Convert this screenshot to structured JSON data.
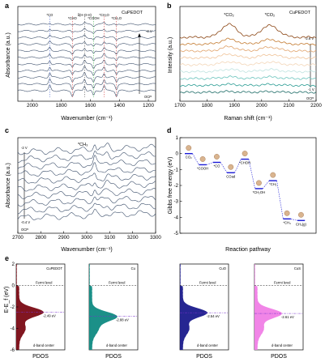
{
  "figure": {
    "panel_a": {
      "letter": "a",
      "tag": "CuPEDOT",
      "ylabel": "Absorbance (a.u.)",
      "xlabel": "Wavenumber (cm⁻¹)",
      "potential_top": "-2 V",
      "potential_bottom": "OCP",
      "peaks": [
        "*CO",
        "*CHO",
        "δ(H-O-H)",
        "*COOH",
        "*CH₂O",
        "*CH₂O"
      ]
    },
    "panel_b": {
      "letter": "b",
      "tag": "CuPEDOT",
      "ylabel": "Intensity (a.u.)",
      "xlabel": "Raman shift (cm⁻¹)",
      "potential_top": "-2.6 V",
      "potential_mid": "-1 V",
      "potential_bottom": "OCP",
      "peaks": [
        "*CO₂",
        "*CO₂"
      ]
    },
    "panel_c": {
      "letter": "c",
      "ylabel": "Absorbance (a.u.)",
      "xlabel": "Wavenumber (cm⁻¹)",
      "potential_top": "-2 V",
      "potential_bottom": "-0.4 V",
      "potential_ocp": "OCP",
      "peak": "*CH₃"
    },
    "panel_d": {
      "letter": "d",
      "ylabel": "Gibbs free energy (eV)",
      "xlabel": "Reaction pathway",
      "species": [
        "CO₂",
        "*COOH",
        "*CO",
        "COad",
        "*CHOH",
        "*CH₂OH",
        "*CH₂",
        "*CH₃",
        "CH₄(g)"
      ]
    },
    "panel_e": {
      "letter": "e",
      "ylabel": "E-E_f (eV)",
      "fermi_label": "Fermi level",
      "dband_label": "d-band center",
      "xlabel": "PDOS"
    }
  },
  "chart_data": [
    {
      "type": "line",
      "panel": "a",
      "xlim": [
        2100,
        1150
      ],
      "xticks": [
        2000,
        1800,
        1600,
        1400,
        1200
      ],
      "series_count": 11,
      "color": "#3b4e6a",
      "peak_positions": [
        1880,
        1724,
        1640,
        1578,
        1505,
        1420
      ]
    },
    {
      "type": "line",
      "panel": "b",
      "xlim": [
        1700,
        2200
      ],
      "xticks": [
        1700,
        1800,
        1900,
        2000,
        2100,
        2200
      ],
      "series_count": 9,
      "colors": [
        "#8b4513",
        "#c37a2f",
        "#e0a26a",
        "#f0c49a",
        "#f3d6b8",
        "#bfe3e0",
        "#6cc4bd",
        "#2a9c93",
        "#1c6b66"
      ],
      "peak_positions": [
        1880,
        2030
      ]
    },
    {
      "type": "line",
      "panel": "c",
      "xlim": [
        2700,
        3300
      ],
      "xticks": [
        2700,
        2800,
        2900,
        3000,
        3100,
        3200,
        3300
      ],
      "series_count": 10,
      "color": "#3b4e6a",
      "peak_positions": [
        3035,
        3090
      ]
    },
    {
      "type": "line",
      "panel": "d",
      "ylim": [
        -5,
        1
      ],
      "yticks": [
        1,
        0,
        -1,
        -2,
        -3,
        -4,
        -5
      ],
      "steps": [
        {
          "label": "CO₂",
          "g": 0.0
        },
        {
          "label": "*COOH",
          "g": -0.7
        },
        {
          "label": "*CO",
          "g": -0.55
        },
        {
          "label": "COad",
          "g": -1.2
        },
        {
          "label": "*CHOH",
          "g": -0.35
        },
        {
          "label": "*CH₂OH",
          "g": -2.2
        },
        {
          "label": "*CH₂",
          "g": -1.7
        },
        {
          "label": "*CH₃",
          "g": -4.1
        },
        {
          "label": "CH₄(g)",
          "g": -4.2
        }
      ]
    },
    {
      "type": "area",
      "panel": "e",
      "ylim": [
        -6,
        2
      ],
      "yticks": [
        2,
        0,
        -2,
        -4,
        -6
      ],
      "materials": [
        {
          "name": "CuPEDOT",
          "color": "#7a0a14",
          "dband": -2.49,
          "dband_label": "-2.49 eV"
        },
        {
          "name": "Cu",
          "color": "#0f8a82",
          "dband": -2.88,
          "dband_label": "-2.88 eV"
        },
        {
          "name": "CuO",
          "color": "#1a1a8c",
          "dband": -2.54,
          "dband_label": "-2.54 eV"
        },
        {
          "name": "CuS",
          "color": "#f07ee6",
          "dband": -2.61,
          "dband_label": "-2.61 eV"
        }
      ]
    }
  ]
}
